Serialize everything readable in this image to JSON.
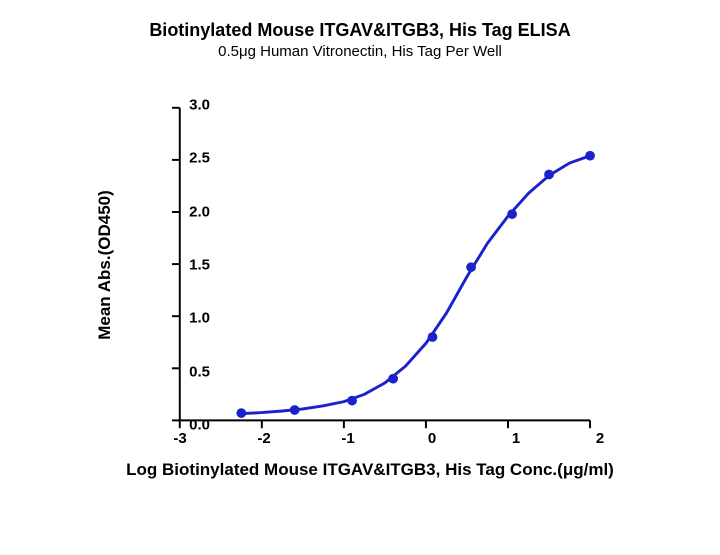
{
  "title": "Biotinylated Mouse ITGAV&ITGB3, His Tag ELISA",
  "subtitle": "0.5μg Human Vitronectin, His Tag Per Well",
  "ylabel": "Mean Abs.(OD450)",
  "xlabel": "Log Biotinylated Mouse ITGAV&ITGB3, His Tag Conc.(μg/ml)",
  "chart": {
    "type": "line-scatter",
    "xlim": [
      -3,
      2
    ],
    "ylim": [
      0,
      3.0
    ],
    "xticks": [
      -3,
      -2,
      -1,
      0,
      1,
      2
    ],
    "yticks": [
      0.0,
      0.5,
      1.0,
      1.5,
      2.0,
      2.5,
      3.0
    ],
    "ytick_labels": [
      "0.0",
      "0.5",
      "1.0",
      "1.5",
      "2.0",
      "2.5",
      "3.0"
    ],
    "xtick_labels": [
      "-3",
      "-2",
      "-1",
      "0",
      "1",
      "2"
    ],
    "line_color": "#1c22c9",
    "marker_color": "#1c22c9",
    "marker_radius": 5,
    "line_width": 3,
    "background_color": "#ffffff",
    "axis_color": "#000000",
    "title_fontsize": 18,
    "subtitle_fontsize": 15,
    "label_fontsize": 17,
    "tick_fontsize": 15,
    "points": [
      {
        "x": -2.25,
        "y": 0.07
      },
      {
        "x": -1.6,
        "y": 0.1
      },
      {
        "x": -0.9,
        "y": 0.19
      },
      {
        "x": -0.4,
        "y": 0.4
      },
      {
        "x": 0.08,
        "y": 0.8
      },
      {
        "x": 0.55,
        "y": 1.47
      },
      {
        "x": 1.05,
        "y": 1.98
      },
      {
        "x": 1.5,
        "y": 2.36
      },
      {
        "x": 2.0,
        "y": 2.54
      }
    ],
    "curve": [
      {
        "x": -2.25,
        "y": 0.065
      },
      {
        "x": -2.0,
        "y": 0.075
      },
      {
        "x": -1.75,
        "y": 0.09
      },
      {
        "x": -1.5,
        "y": 0.11
      },
      {
        "x": -1.25,
        "y": 0.14
      },
      {
        "x": -1.0,
        "y": 0.18
      },
      {
        "x": -0.75,
        "y": 0.25
      },
      {
        "x": -0.5,
        "y": 0.36
      },
      {
        "x": -0.25,
        "y": 0.52
      },
      {
        "x": 0.0,
        "y": 0.74
      },
      {
        "x": 0.25,
        "y": 1.03
      },
      {
        "x": 0.5,
        "y": 1.38
      },
      {
        "x": 0.75,
        "y": 1.7
      },
      {
        "x": 1.0,
        "y": 1.96
      },
      {
        "x": 1.25,
        "y": 2.18
      },
      {
        "x": 1.5,
        "y": 2.35
      },
      {
        "x": 1.75,
        "y": 2.47
      },
      {
        "x": 2.0,
        "y": 2.54
      }
    ]
  }
}
